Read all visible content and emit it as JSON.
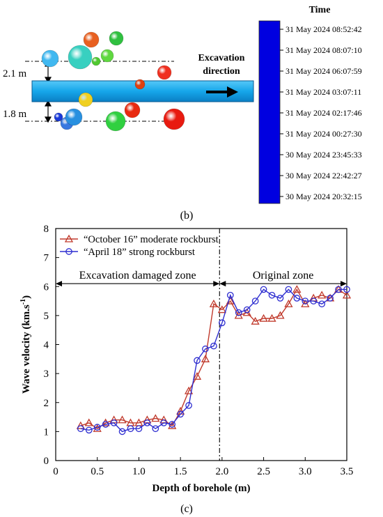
{
  "panel_b": {
    "label": "(b)",
    "direction_label": [
      "Excavation",
      "direction"
    ],
    "offset_labels": [
      "2.1 m",
      "1.8 m"
    ],
    "colorbar": {
      "title": "Time",
      "colors": [
        "#0000e0",
        "#0070ff",
        "#00c0ff",
        "#00e8c8",
        "#20d040",
        "#b0e000",
        "#ffff00",
        "#ff8000",
        "#ff0000"
      ],
      "ticks": [
        "31 May 2024 08:52:42",
        "31 May 2024 08:07:10",
        "31 May 2024 06:07:59",
        "31 May 2024 03:07:11",
        "31 May 2024 02:17:46",
        "31 May 2024 00:27:30",
        "30 May 2024 23:45:33",
        "30 May 2024 22:42:27",
        "30 May 2024 20:32:15"
      ]
    },
    "events": [
      {
        "color": "#e86020"
      },
      {
        "color": "#30c040"
      },
      {
        "color": "#40b8f0"
      },
      {
        "color": "#38d0c0"
      },
      {
        "color": "#60d840"
      },
      {
        "color": "#50c830"
      },
      {
        "color": "#f03020"
      },
      {
        "color": "#e04010"
      },
      {
        "color": "#f0d020"
      },
      {
        "color": "#e82a10"
      },
      {
        "color": "#1a3ad8"
      },
      {
        "color": "#3878e0"
      },
      {
        "color": "#2890e0"
      },
      {
        "color": "#30d040"
      },
      {
        "color": "#e81a10"
      }
    ]
  },
  "panel_c": {
    "label": "(c)",
    "chart_data": {
      "type": "line",
      "xlabel": "Depth of borehole (m)",
      "ylabel": "Wave velocity (km.s",
      "ylabel_sup": "-1",
      "ylabel_close": ")",
      "xlim": [
        0,
        3.5
      ],
      "ylim": [
        0,
        8
      ],
      "x_ticks": [
        "0",
        "0.5",
        "1.0",
        "1.5",
        "2.0",
        "2.5",
        "3.0",
        "3.5"
      ],
      "y_ticks": [
        "0",
        "1",
        "2",
        "3",
        "4",
        "5",
        "6",
        "7",
        "8"
      ],
      "zones": [
        {
          "label": "Excavation damaged zone",
          "from": 0,
          "to": 1.97
        },
        {
          "label": "Original zone",
          "from": 1.97,
          "to": 3.5
        }
      ],
      "boundary_x": 1.97,
      "legend_position": "top-left",
      "series": [
        {
          "name": "“October 16” moderate rockburst",
          "color": "#c0392b",
          "marker": "triangle",
          "x": [
            0.3,
            0.4,
            0.5,
            0.6,
            0.7,
            0.8,
            0.9,
            1.0,
            1.1,
            1.2,
            1.3,
            1.4,
            1.5,
            1.6,
            1.7,
            1.8,
            1.9,
            2.0,
            2.1,
            2.2,
            2.3,
            2.4,
            2.5,
            2.6,
            2.7,
            2.8,
            2.9,
            3.0,
            3.1,
            3.2,
            3.3,
            3.4,
            3.5
          ],
          "y": [
            1.2,
            1.3,
            1.1,
            1.3,
            1.4,
            1.4,
            1.3,
            1.3,
            1.4,
            1.45,
            1.4,
            1.2,
            1.7,
            2.4,
            2.9,
            3.5,
            5.4,
            5.2,
            5.5,
            5.0,
            5.1,
            4.8,
            4.9,
            4.9,
            5.0,
            5.4,
            5.9,
            5.4,
            5.6,
            5.7,
            5.6,
            5.9,
            5.7
          ]
        },
        {
          "name": "“April 18” strong rockburst",
          "color": "#2d2dd0",
          "marker": "circle",
          "x": [
            0.3,
            0.4,
            0.5,
            0.6,
            0.7,
            0.8,
            0.9,
            1.0,
            1.1,
            1.2,
            1.3,
            1.4,
            1.5,
            1.6,
            1.7,
            1.8,
            1.9,
            2.0,
            2.1,
            2.2,
            2.3,
            2.4,
            2.5,
            2.6,
            2.7,
            2.8,
            2.9,
            3.0,
            3.1,
            3.2,
            3.3,
            3.4,
            3.5
          ],
          "y": [
            1.1,
            1.05,
            1.15,
            1.25,
            1.3,
            1.0,
            1.1,
            1.1,
            1.3,
            1.1,
            1.3,
            1.25,
            1.6,
            1.9,
            3.45,
            3.85,
            3.95,
            4.75,
            5.7,
            5.1,
            5.2,
            5.5,
            5.9,
            5.7,
            5.6,
            5.9,
            5.6,
            5.5,
            5.5,
            5.4,
            5.6,
            5.9,
            5.9
          ]
        }
      ]
    }
  }
}
